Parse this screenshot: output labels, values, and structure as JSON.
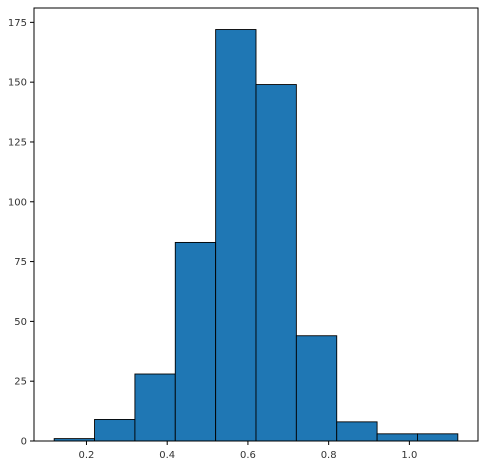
{
  "chart_data": {
    "type": "bar",
    "subtype": "histogram",
    "title": "",
    "xlabel": "",
    "ylabel": "",
    "bins": [
      {
        "x0": 0.12,
        "x1": 0.22,
        "count": 1
      },
      {
        "x0": 0.22,
        "x1": 0.32,
        "count": 9
      },
      {
        "x0": 0.32,
        "x1": 0.42,
        "count": 28
      },
      {
        "x0": 0.42,
        "x1": 0.52,
        "count": 83
      },
      {
        "x0": 0.52,
        "x1": 0.62,
        "count": 172
      },
      {
        "x0": 0.62,
        "x1": 0.72,
        "count": 149
      },
      {
        "x0": 0.72,
        "x1": 0.82,
        "count": 44
      },
      {
        "x0": 0.82,
        "x1": 0.92,
        "count": 8
      },
      {
        "x0": 0.92,
        "x1": 1.02,
        "count": 3
      },
      {
        "x0": 1.02,
        "x1": 1.12,
        "count": 3
      }
    ],
    "xlim": [
      0.07,
      1.17
    ],
    "ylim": [
      0,
      181
    ],
    "x_ticks": [
      {
        "value": 0.2,
        "label": "0.2"
      },
      {
        "value": 0.4,
        "label": "0.4"
      },
      {
        "value": 0.6,
        "label": "0.6"
      },
      {
        "value": 0.8,
        "label": "0.8"
      },
      {
        "value": 1.0,
        "label": "1.0"
      }
    ],
    "y_ticks": [
      {
        "value": 0,
        "label": "0"
      },
      {
        "value": 25,
        "label": "25"
      },
      {
        "value": 50,
        "label": "50"
      },
      {
        "value": 75,
        "label": "75"
      },
      {
        "value": 100,
        "label": "100"
      },
      {
        "value": 125,
        "label": "125"
      },
      {
        "value": 150,
        "label": "150"
      },
      {
        "value": 175,
        "label": "175"
      }
    ],
    "grid": false,
    "legend": "none",
    "colors": {
      "bar_fill": "#1f77b4",
      "bar_edge": "#000000"
    }
  }
}
